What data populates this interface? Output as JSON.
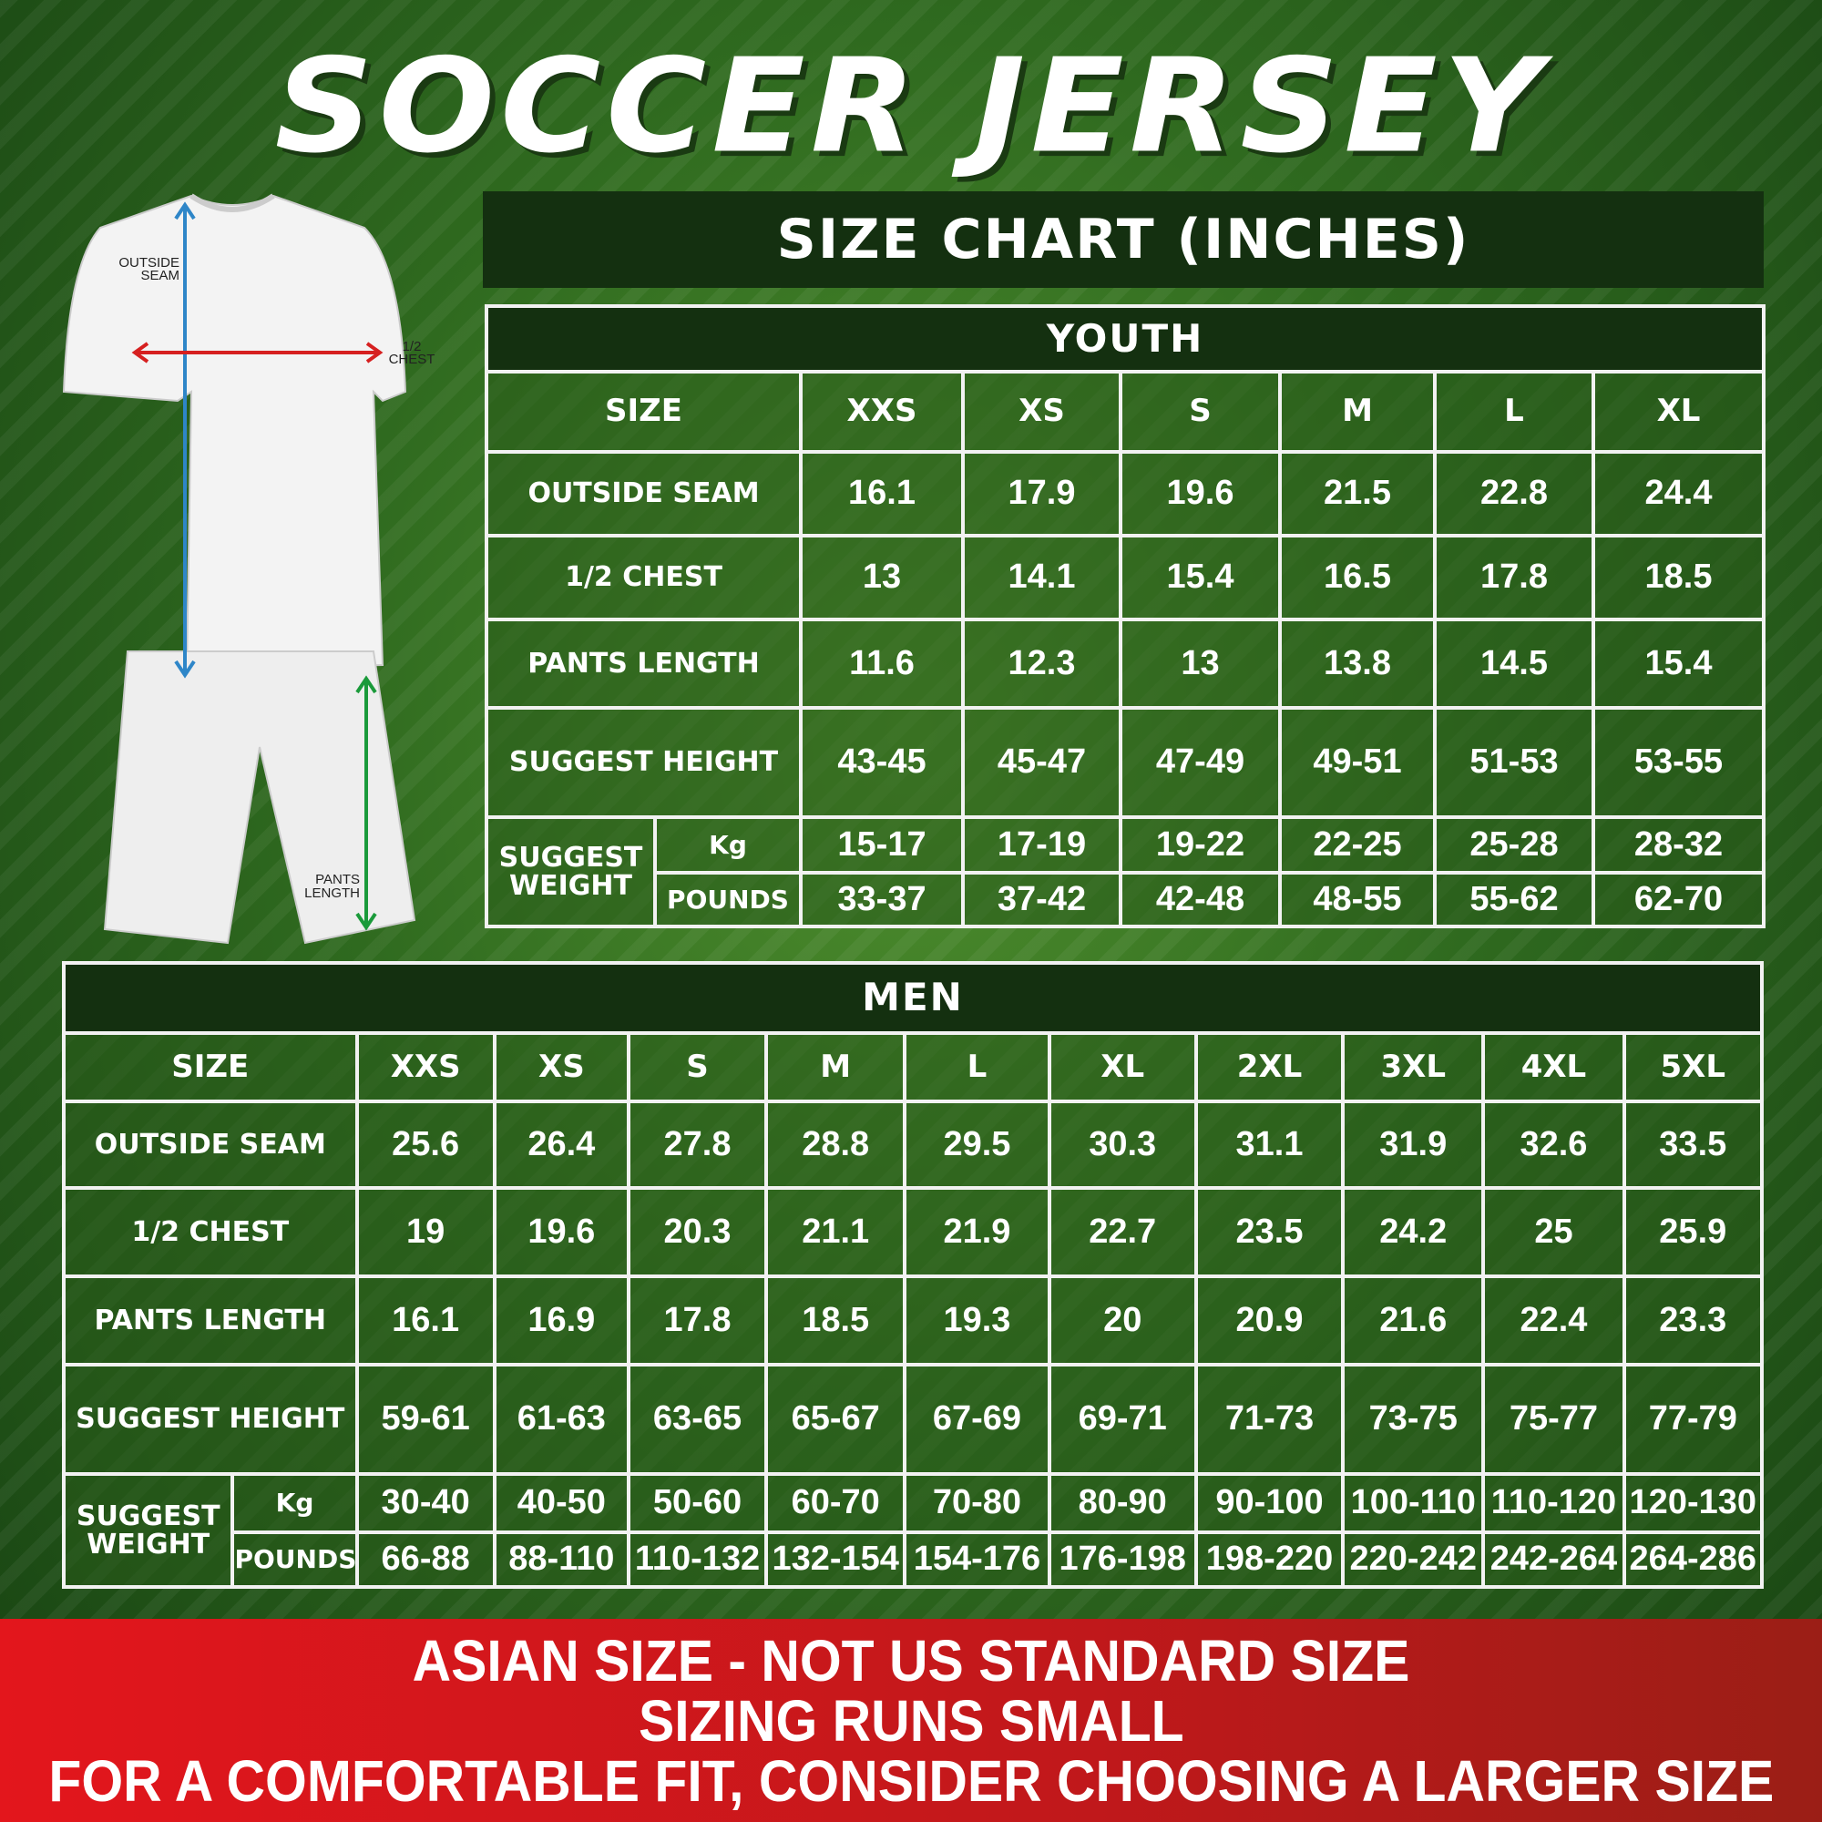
{
  "title": "SOCCER JERSEY",
  "chart_header": "SIZE CHART (INCHES)",
  "illustration": {
    "outside_seam": [
      "OUTSIDE",
      "SEAM"
    ],
    "half_chest": [
      "1/2",
      "CHEST"
    ],
    "pants_length": [
      "PANTS",
      "LENGTH"
    ],
    "colors": {
      "outside_seam": "#2e86c8",
      "half_chest": "#d62020",
      "pants_length": "#1a9a3a"
    }
  },
  "youth": {
    "title": "YOUTH",
    "size_label": "SIZE",
    "sizes": [
      "XXS",
      "XS",
      "S",
      "M",
      "L",
      "XL"
    ],
    "rows": [
      {
        "label": "OUTSIDE SEAM",
        "values": [
          "16.1",
          "17.9",
          "19.6",
          "21.5",
          "22.8",
          "24.4"
        ]
      },
      {
        "label": "1/2 CHEST",
        "values": [
          "13",
          "14.1",
          "15.4",
          "16.5",
          "17.8",
          "18.5"
        ]
      },
      {
        "label": "PANTS LENGTH",
        "values": [
          "11.6",
          "12.3",
          "13",
          "13.8",
          "14.5",
          "15.4"
        ]
      },
      {
        "label": "SUGGEST HEIGHT",
        "values": [
          "43-45",
          "45-47",
          "47-49",
          "49-51",
          "51-53",
          "53-55"
        ]
      }
    ],
    "weight_label": "SUGGEST WEIGHT",
    "kg_label": "Kg",
    "lb_label": "POUNDS",
    "kg": [
      "15-17",
      "17-19",
      "19-22",
      "22-25",
      "25-28",
      "28-32"
    ],
    "lb": [
      "33-37",
      "37-42",
      "42-48",
      "48-55",
      "55-62",
      "62-70"
    ]
  },
  "men": {
    "title": "MEN",
    "size_label": "SIZE",
    "sizes": [
      "XXS",
      "XS",
      "S",
      "M",
      "L",
      "XL",
      "2XL",
      "3XL",
      "4XL",
      "5XL"
    ],
    "rows": [
      {
        "label": "OUTSIDE SEAM",
        "values": [
          "25.6",
          "26.4",
          "27.8",
          "28.8",
          "29.5",
          "30.3",
          "31.1",
          "31.9",
          "32.6",
          "33.5"
        ]
      },
      {
        "label": "1/2 CHEST",
        "values": [
          "19",
          "19.6",
          "20.3",
          "21.1",
          "21.9",
          "22.7",
          "23.5",
          "24.2",
          "25",
          "25.9"
        ]
      },
      {
        "label": "PANTS LENGTH",
        "values": [
          "16.1",
          "16.9",
          "17.8",
          "18.5",
          "19.3",
          "20",
          "20.9",
          "21.6",
          "22.4",
          "23.3"
        ]
      },
      {
        "label": "SUGGEST HEIGHT",
        "values": [
          "59-61",
          "61-63",
          "63-65",
          "65-67",
          "67-69",
          "69-71",
          "71-73",
          "73-75",
          "75-77",
          "77-79"
        ]
      }
    ],
    "weight_label": "SUGGEST WEIGHT",
    "kg_label": "Kg",
    "lb_label": "POUNDS",
    "kg": [
      "30-40",
      "40-50",
      "50-60",
      "60-70",
      "70-80",
      "80-90",
      "90-100",
      "100-110",
      "110-120",
      "120-130"
    ],
    "lb": [
      "66-88",
      "88-110",
      "110-132",
      "132-154",
      "154-176",
      "176-198",
      "198-220",
      "220-242",
      "242-264",
      "264-286"
    ]
  },
  "banner": [
    "ASIAN SIZE - NOT US STANDARD SIZE",
    "SIZING RUNS SMALL",
    "FOR A COMFORTABLE FIT, CONSIDER CHOOSING A LARGER SIZE"
  ],
  "colors": {
    "background": "#2f6a1f",
    "header": "#143010",
    "banner": "#e3161c"
  }
}
